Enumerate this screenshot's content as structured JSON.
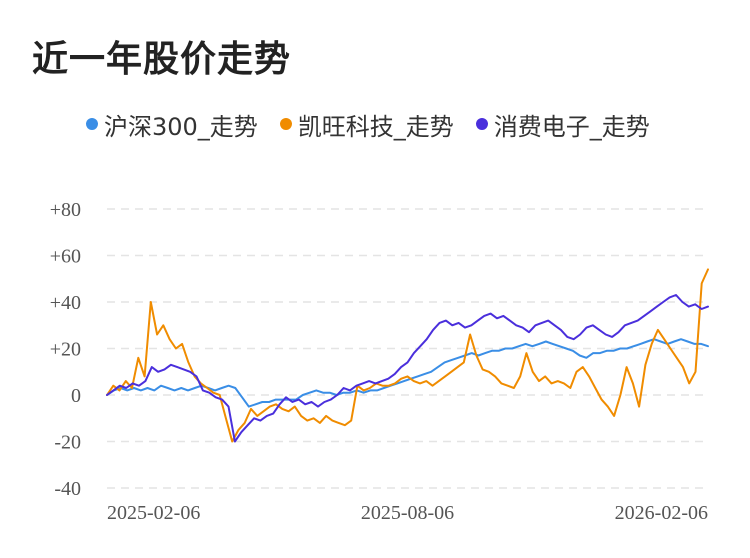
{
  "title": "近一年股价走势",
  "chart_data": {
    "type": "line",
    "x_ticks": [
      "2025-02-06",
      "2025-08-06",
      "2026-02-06"
    ],
    "y_ticks": [
      "+80",
      "+60",
      "+40",
      "+20",
      "0",
      "-20",
      "-40"
    ],
    "ylim": [
      -40,
      80
    ],
    "grid": true,
    "legend_position": "top-left",
    "series": [
      {
        "name": "沪深300_走势",
        "color": "#3a8ee6",
        "values": [
          0,
          2,
          3,
          2,
          3,
          2,
          3,
          2,
          4,
          3,
          2,
          3,
          2,
          3,
          4,
          3,
          2,
          3,
          4,
          3,
          -1,
          -5,
          -4,
          -3,
          -3,
          -2,
          -2,
          -2,
          -2,
          0,
          1,
          2,
          1,
          1,
          0,
          1,
          1,
          2,
          1,
          2,
          2,
          3,
          4,
          5,
          6,
          7,
          8,
          9,
          10,
          12,
          14,
          15,
          16,
          17,
          18,
          17,
          18,
          19,
          19,
          20,
          20,
          21,
          22,
          21,
          22,
          23,
          22,
          21,
          20,
          19,
          17,
          16,
          18,
          18,
          19,
          19,
          20,
          20,
          21,
          22,
          23,
          24,
          23,
          22,
          23,
          24,
          23,
          22,
          22,
          21
        ]
      },
      {
        "name": "凯旺科技_走势",
        "color": "#f08c00",
        "values": [
          0,
          4,
          2,
          6,
          3,
          16,
          8,
          40,
          26,
          30,
          24,
          20,
          22,
          14,
          8,
          5,
          3,
          1,
          0,
          -10,
          -20,
          -15,
          -12,
          -6,
          -9,
          -7,
          -5,
          -4,
          -6,
          -7,
          -5,
          -9,
          -11,
          -10,
          -12,
          -9,
          -11,
          -12,
          -13,
          -11,
          4,
          2,
          3,
          5,
          4,
          4,
          5,
          7,
          8,
          6,
          5,
          6,
          4,
          6,
          8,
          10,
          12,
          14,
          26,
          17,
          11,
          10,
          8,
          5,
          4,
          3,
          8,
          18,
          10,
          6,
          8,
          5,
          6,
          5,
          3,
          10,
          12,
          8,
          3,
          -2,
          -5,
          -9,
          0,
          12,
          5,
          -5,
          13,
          22,
          28,
          24,
          20,
          16,
          12,
          5,
          10,
          48,
          54
        ]
      },
      {
        "name": "消费电子_走势",
        "color": "#4a2fdc",
        "values": [
          0,
          2,
          4,
          3,
          5,
          4,
          6,
          12,
          10,
          11,
          13,
          12,
          11,
          10,
          8,
          2,
          1,
          -1,
          -2,
          -5,
          -20,
          -16,
          -13,
          -10,
          -11,
          -9,
          -8,
          -4,
          -1,
          -3,
          -2,
          -4,
          -3,
          -5,
          -3,
          -2,
          0,
          3,
          2,
          4,
          5,
          6,
          5,
          6,
          7,
          9,
          12,
          14,
          18,
          21,
          24,
          28,
          31,
          32,
          30,
          31,
          29,
          30,
          32,
          34,
          35,
          33,
          34,
          32,
          30,
          29,
          27,
          30,
          31,
          32,
          30,
          28,
          25,
          24,
          26,
          29,
          30,
          28,
          26,
          25,
          27,
          30,
          31,
          32,
          34,
          36,
          38,
          40,
          42,
          43,
          40,
          38,
          39,
          37,
          38
        ]
      }
    ]
  }
}
